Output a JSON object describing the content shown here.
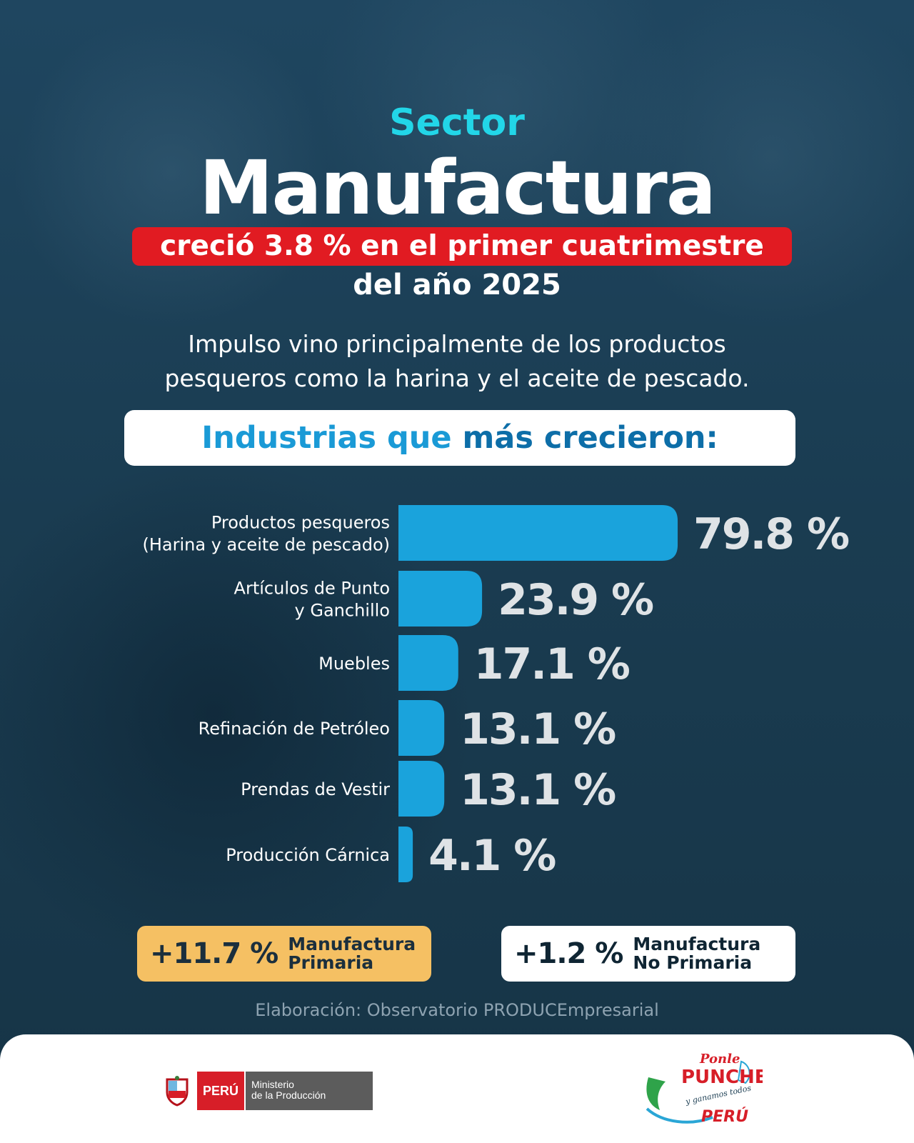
{
  "header": {
    "sector_label": "Sector",
    "main_title": "Manufactura",
    "banner_text": "creció 3.8 % en el primer cuatrimestre",
    "year_line": "del año 2025"
  },
  "description": {
    "line1": "Impulso vino principalmente de los productos",
    "line2": "pesqueros como la harina y el aceite de pescado."
  },
  "industries_heading": {
    "part1": "Industrias que ",
    "part2": "más crecieron:"
  },
  "chart_data": {
    "type": "bar",
    "orientation": "horizontal",
    "categories": [
      [
        "Productos pesqueros",
        "(Harina y aceite de pescado)"
      ],
      [
        "Artículos de Punto",
        "y Ganchillo"
      ],
      [
        "Muebles"
      ],
      [
        "Refinación de Petróleo"
      ],
      [
        "Prendas de Vestir"
      ],
      [
        "Producción Cárnica"
      ]
    ],
    "values": [
      79.8,
      23.9,
      17.1,
      13.1,
      13.1,
      4.1
    ],
    "value_labels": [
      "79.8 %",
      "23.9 %",
      "17.1 %",
      "13.1 %",
      "13.1 %",
      "4.1 %"
    ],
    "unit": "%",
    "bar_color": "#1aa3dc",
    "grid": false
  },
  "summary": {
    "primary": {
      "value": "+11.7 %",
      "label_line1": "Manufactura",
      "label_line2": "Primaria",
      "color": "#f5c063"
    },
    "non_primary": {
      "value": "+1.2 %",
      "label_line1": "Manufactura",
      "label_line2": "No Primaria",
      "color": "#ffffff"
    }
  },
  "credit": "Elaboración: Observatorio PRODUCEmpresarial",
  "footer": {
    "gov_country": "PERÚ",
    "gov_ministry_line1": "Ministerio",
    "gov_ministry_line2": "de la Producción",
    "campaign": {
      "line1": "Ponle",
      "line2": "PUNCHE",
      "line3": "y ganamos todos",
      "line4": "PERÚ"
    }
  },
  "colors": {
    "background": "#1b3d52",
    "accent_cyan": "#22d6e8",
    "banner_red": "#e11b22",
    "heading_blue_light": "#1a9ad6",
    "heading_blue_dark": "#0d6ea8",
    "value_text": "#dfe3e6"
  }
}
